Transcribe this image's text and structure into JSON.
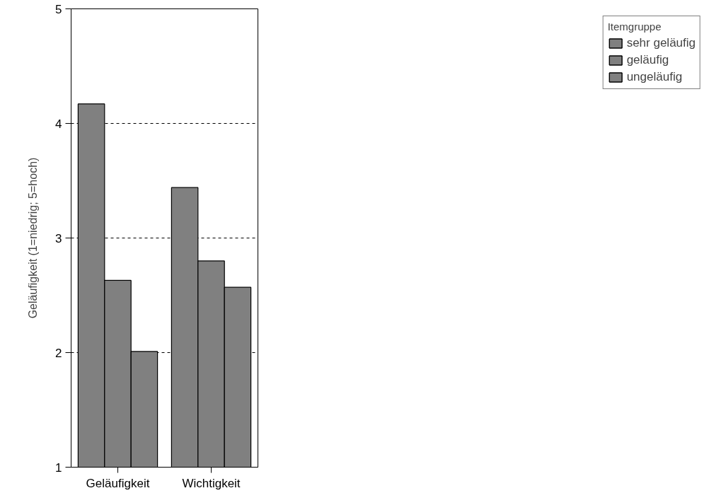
{
  "chart_data": {
    "type": "bar",
    "ylabel": "Geläufigkeit (1=niedrig; 5=hoch)",
    "legend_title": "Itemgruppe",
    "categories": [
      "Geläufigkeit",
      "Wichtigkeit"
    ],
    "series": [
      {
        "name": "sehr geläufig",
        "color": "#808080",
        "values": [
          4.17,
          3.44
        ]
      },
      {
        "name": "geläufig",
        "color": "#808080",
        "values": [
          2.63,
          2.8
        ]
      },
      {
        "name": "ungeläufig",
        "color": "#808080",
        "values": [
          2.01,
          2.57
        ]
      }
    ],
    "ylim": [
      1,
      5
    ],
    "yticks": [
      1,
      2,
      3,
      4,
      5
    ],
    "grid": "y",
    "legend": "right"
  }
}
